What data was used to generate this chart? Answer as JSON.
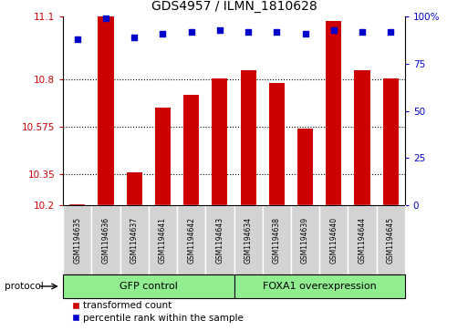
{
  "title": "GDS4957 / ILMN_1810628",
  "samples": [
    "GSM1194635",
    "GSM1194636",
    "GSM1194637",
    "GSM1194641",
    "GSM1194642",
    "GSM1194643",
    "GSM1194634",
    "GSM1194638",
    "GSM1194639",
    "GSM1194640",
    "GSM1194644",
    "GSM1194645"
  ],
  "red_values": [
    10.205,
    11.1,
    10.355,
    10.665,
    10.725,
    10.805,
    10.845,
    10.785,
    10.565,
    11.08,
    10.845,
    10.805
  ],
  "blue_values": [
    88,
    99,
    89,
    91,
    92,
    93,
    92,
    92,
    91,
    93,
    92,
    92
  ],
  "ylim_left": [
    10.2,
    11.1
  ],
  "ylim_right": [
    0,
    100
  ],
  "yticks_left": [
    10.2,
    10.35,
    10.575,
    10.8,
    11.1
  ],
  "yticks_right": [
    0,
    25,
    50,
    75,
    100
  ],
  "ytick_labels_left": [
    "10.2",
    "10.35",
    "10.575",
    "10.8",
    "11.1"
  ],
  "ytick_labels_right": [
    "0",
    "25",
    "50",
    "75",
    "100%"
  ],
  "hlines": [
    10.35,
    10.575,
    10.8
  ],
  "group1_label": "GFP control",
  "group2_label": "FOXA1 overexpression",
  "group1_count": 6,
  "group2_count": 6,
  "protocol_label": "protocol",
  "legend1": "transformed count",
  "legend2": "percentile rank within the sample",
  "red_color": "#cc0000",
  "blue_color": "#0000cc",
  "bar_baseline": 10.2,
  "group1_color": "#90ee90",
  "group2_color": "#90ee90",
  "tick_color_left": "#cc0000",
  "tick_color_right": "#0000cc",
  "cell_color": "#d3d3d3",
  "bar_width": 0.55
}
